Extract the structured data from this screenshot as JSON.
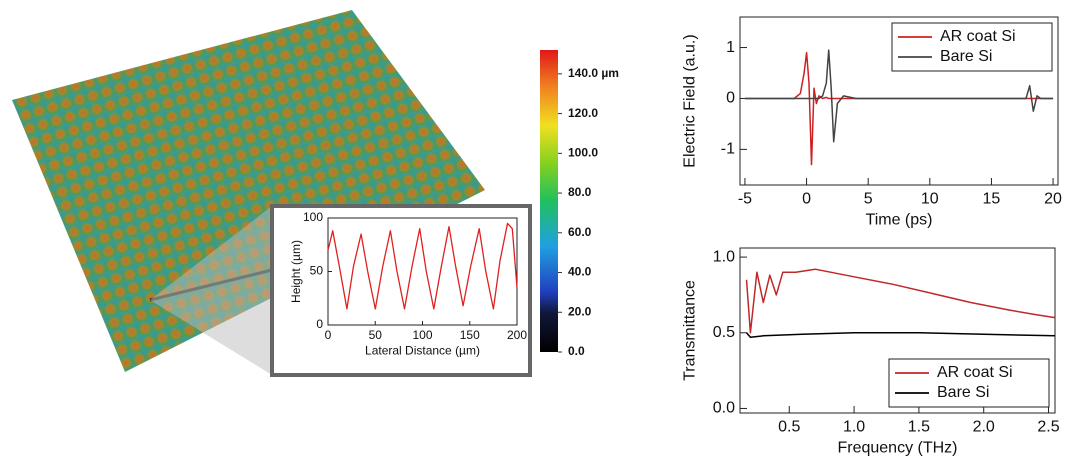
{
  "chart_data": [
    {
      "type": "colorbar",
      "ylim": [
        0,
        152
      ],
      "yticks": [
        {
          "value": 0,
          "label": "0.0"
        },
        {
          "value": 20,
          "label": "20.0"
        },
        {
          "value": 40,
          "label": "40.0"
        },
        {
          "value": 60,
          "label": "60.0"
        },
        {
          "value": 80,
          "label": "80.0"
        },
        {
          "value": 100,
          "label": "100.0"
        },
        {
          "value": 120,
          "label": "120.0"
        },
        {
          "value": 140,
          "label": "140.0 µm"
        }
      ]
    },
    {
      "type": "line",
      "xlabel": "Lateral Distance (µm)",
      "ylabel": "Height (µm)",
      "xlim": [
        0,
        200
      ],
      "ylim": [
        0,
        100
      ],
      "xticks": [
        0,
        50,
        100,
        150,
        200
      ],
      "yticks": [
        0,
        50,
        100
      ],
      "series": [
        {
          "color": "#e02020",
          "x": [
            0,
            5,
            12,
            20,
            27,
            35,
            42,
            50,
            58,
            66,
            73,
            81,
            89,
            97,
            104,
            112,
            120,
            128,
            135,
            143,
            151,
            160,
            167,
            175,
            182,
            190,
            195,
            200
          ],
          "values": [
            70,
            88,
            55,
            15,
            55,
            85,
            50,
            15,
            55,
            88,
            50,
            15,
            55,
            90,
            50,
            15,
            55,
            92,
            55,
            18,
            55,
            90,
            50,
            15,
            60,
            95,
            90,
            35
          ]
        }
      ]
    },
    {
      "type": "line",
      "xlabel": "Time (ps)",
      "ylabel": "Electric Field (a.u.)",
      "xlim": [
        -5.4,
        20.4
      ],
      "ylim": [
        -1.7,
        1.6
      ],
      "xticks": [
        -5,
        0,
        5,
        10,
        15,
        20
      ],
      "yticks": [
        -1,
        0,
        1
      ],
      "legend": "upper right",
      "series": [
        {
          "name": "AR coat Si",
          "color": "#d02020",
          "x": [
            -5,
            -1,
            -0.5,
            -0.2,
            0,
            0.2,
            0.4,
            0.6,
            0.8,
            1.0,
            1.3,
            1.6,
            1.8,
            2.0,
            2.2,
            2.5,
            3,
            4,
            6,
            10,
            17,
            17.8,
            18.1,
            18.4,
            18.7,
            19,
            20
          ],
          "values": [
            0,
            0,
            0.1,
            0.5,
            0.9,
            0.3,
            -1.3,
            0.2,
            -0.1,
            0.05,
            0,
            0.02,
            0,
            0,
            0,
            0,
            0,
            0,
            0,
            0,
            0,
            0,
            0,
            0,
            0,
            0,
            0
          ]
        },
        {
          "name": "Bare Si",
          "color": "#444444",
          "x": [
            -5,
            -1,
            -0.5,
            -0.2,
            0,
            0.2,
            0.4,
            0.6,
            0.8,
            1.0,
            1.3,
            1.6,
            1.8,
            2.0,
            2.2,
            2.5,
            3,
            4,
            6,
            10,
            17,
            17.8,
            18.1,
            18.4,
            18.7,
            19,
            20
          ],
          "values": [
            0,
            0,
            0,
            0,
            0,
            0,
            0,
            0,
            0,
            0,
            0.05,
            0.3,
            0.95,
            0.2,
            -0.85,
            -0.1,
            0.05,
            0,
            0,
            0,
            0,
            0,
            0.25,
            -0.25,
            0.05,
            0,
            0
          ]
        }
      ]
    },
    {
      "type": "line",
      "xlabel": "Frequency (THz)",
      "ylabel": "Transmittance",
      "xlim": [
        0.12,
        2.55
      ],
      "ylim": [
        -0.03,
        1.06
      ],
      "xticks": [
        0.5,
        {
          "value": 1,
          "label": "1.0"
        },
        1.5,
        {
          "value": 2,
          "label": "2.0"
        },
        2.5
      ],
      "yticks": [
        {
          "value": 0,
          "label": "0.0"
        },
        0.5,
        {
          "value": 1,
          "label": "1.0"
        }
      ],
      "legend": "lower right",
      "series": [
        {
          "name": "AR coat Si",
          "color": "#c02828",
          "x": [
            0.17,
            0.2,
            0.25,
            0.3,
            0.35,
            0.4,
            0.45,
            0.55,
            0.7,
            1.0,
            1.3,
            1.6,
            1.9,
            2.2,
            2.4,
            2.55
          ],
          "values": [
            0.85,
            0.5,
            0.9,
            0.7,
            0.88,
            0.75,
            0.9,
            0.9,
            0.92,
            0.87,
            0.82,
            0.76,
            0.7,
            0.65,
            0.62,
            0.6
          ]
        },
        {
          "name": "Bare Si",
          "color": "#000000",
          "x": [
            0.17,
            0.2,
            0.3,
            0.6,
            1.0,
            1.5,
            2.0,
            2.55
          ],
          "values": [
            0.5,
            0.47,
            0.48,
            0.49,
            0.5,
            0.5,
            0.49,
            0.48
          ]
        }
      ]
    }
  ]
}
